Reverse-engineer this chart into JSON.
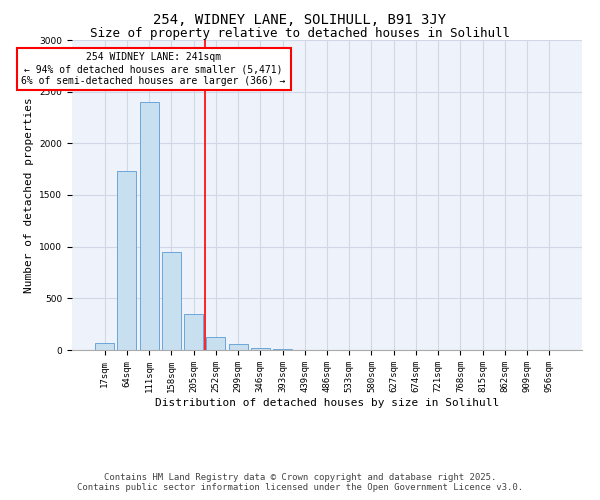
{
  "title1": "254, WIDNEY LANE, SOLIHULL, B91 3JY",
  "title2": "Size of property relative to detached houses in Solihull",
  "xlabel": "Distribution of detached houses by size in Solihull",
  "ylabel": "Number of detached properties",
  "categories": [
    "17sqm",
    "64sqm",
    "111sqm",
    "158sqm",
    "205sqm",
    "252sqm",
    "299sqm",
    "346sqm",
    "393sqm",
    "439sqm",
    "486sqm",
    "533sqm",
    "580sqm",
    "627sqm",
    "674sqm",
    "721sqm",
    "768sqm",
    "815sqm",
    "862sqm",
    "909sqm",
    "956sqm"
  ],
  "values": [
    70,
    1730,
    2400,
    950,
    350,
    130,
    55,
    20,
    5,
    2,
    1,
    0,
    0,
    0,
    0,
    0,
    0,
    0,
    0,
    0,
    0
  ],
  "bar_color": "#c8dff0",
  "bar_edgecolor": "#5b9bd5",
  "vline_x_index": 4.5,
  "vline_color": "red",
  "annotation_text": "254 WIDNEY LANE: 241sqm\n← 94% of detached houses are smaller (5,471)\n6% of semi-detached houses are larger (366) →",
  "annotation_box_color": "red",
  "ylim": [
    0,
    3000
  ],
  "background_color": "#eef2fb",
  "grid_color": "#d0d8e8",
  "footnote1": "Contains HM Land Registry data © Crown copyright and database right 2025.",
  "footnote2": "Contains public sector information licensed under the Open Government Licence v3.0.",
  "title1_fontsize": 10,
  "title2_fontsize": 9,
  "xlabel_fontsize": 8,
  "ylabel_fontsize": 8,
  "tick_fontsize": 6.5,
  "annot_fontsize": 7,
  "footnote_fontsize": 6.5
}
